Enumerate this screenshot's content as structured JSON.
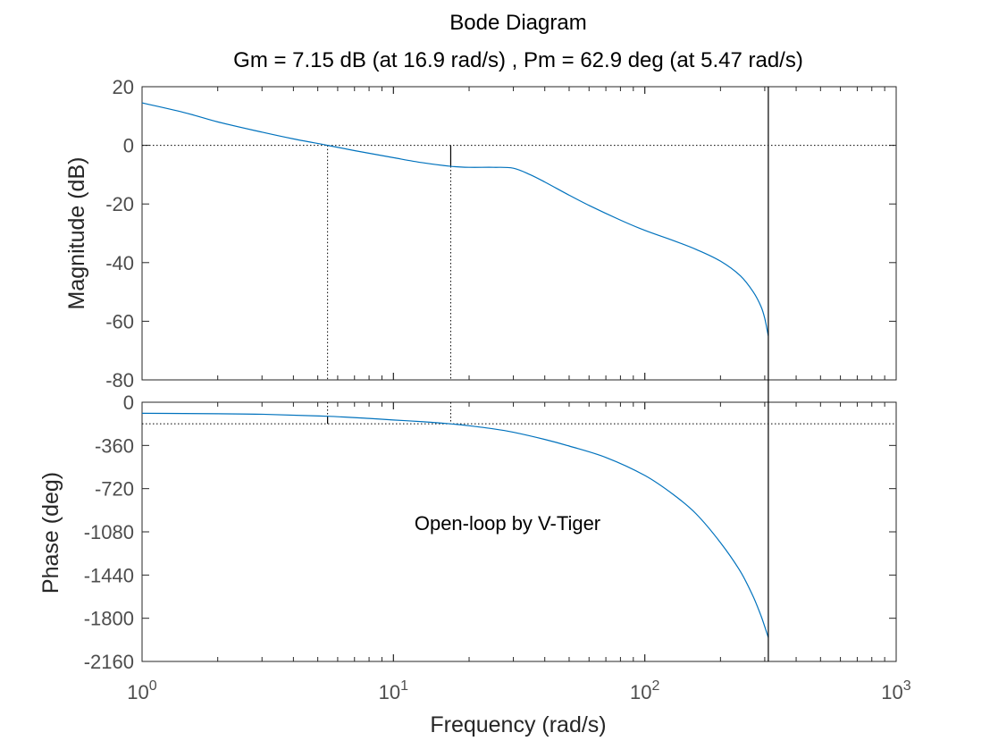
{
  "chart_data": {
    "type": "line",
    "title": "Bode Diagram",
    "subtitle": "Gm = 7.15 dB (at 16.9 rad/s) ,  Pm = 62.9 deg (at 5.47 rad/s)",
    "xlabel": "Frequency  (rad/s)",
    "xscale": "log",
    "xlim": [
      1,
      1000
    ],
    "x_tick_labels": [
      {
        "base": "10",
        "exp": "0"
      },
      {
        "base": "10",
        "exp": "1"
      },
      {
        "base": "10",
        "exp": "2"
      },
      {
        "base": "10",
        "exp": "3"
      }
    ],
    "x_tick_values": [
      1,
      10,
      100,
      1000
    ],
    "annotation": "Open-loop by V-Tiger",
    "line_color": "#0072bd",
    "gain_margin": {
      "value_db": 7.15,
      "frequency": 16.9
    },
    "phase_margin": {
      "value_deg": 62.9,
      "frequency": 5.47
    },
    "vertical_line_frequency": 310,
    "magnitude": {
      "ylabel": "Magnitude (dB)",
      "ylim": [
        -80,
        20
      ],
      "yticks": [
        "20",
        "0",
        "-20",
        "-40",
        "-60",
        "-80"
      ],
      "reference_line": 0,
      "x": [
        1,
        1.5,
        2,
        3,
        4,
        5.47,
        7,
        10,
        13,
        16.9,
        20,
        25,
        30,
        35,
        40,
        50,
        60,
        80,
        100,
        130,
        160,
        200,
        240,
        270,
        290,
        300,
        310
      ],
      "y": [
        14.5,
        11.0,
        8.0,
        4.5,
        2.2,
        0,
        -1.8,
        -4.2,
        -5.9,
        -7.15,
        -7.5,
        -7.5,
        -7.8,
        -10.0,
        -12.5,
        -17.0,
        -20.5,
        -25.5,
        -29.0,
        -32.5,
        -35.5,
        -39.5,
        -44.5,
        -50.0,
        -55.0,
        -59.0,
        -65.0
      ]
    },
    "phase": {
      "ylabel": "Phase (deg)",
      "ylim": [
        -2160,
        0
      ],
      "yticks": [
        "0",
        "-360",
        "-720",
        "-1080",
        "-1440",
        "-1800",
        "-2160"
      ],
      "reference_line": -180,
      "x": [
        1,
        2,
        3,
        5.47,
        8,
        10,
        13,
        16.9,
        20,
        25,
        30,
        40,
        50,
        70,
        100,
        130,
        160,
        200,
        240,
        270,
        290,
        300,
        310
      ],
      "y": [
        -92,
        -96,
        -100,
        -117,
        -135,
        -148,
        -162,
        -180,
        -196,
        -222,
        -250,
        -310,
        -365,
        -460,
        -610,
        -770,
        -930,
        -1170,
        -1410,
        -1620,
        -1780,
        -1870,
        -1960
      ]
    }
  }
}
